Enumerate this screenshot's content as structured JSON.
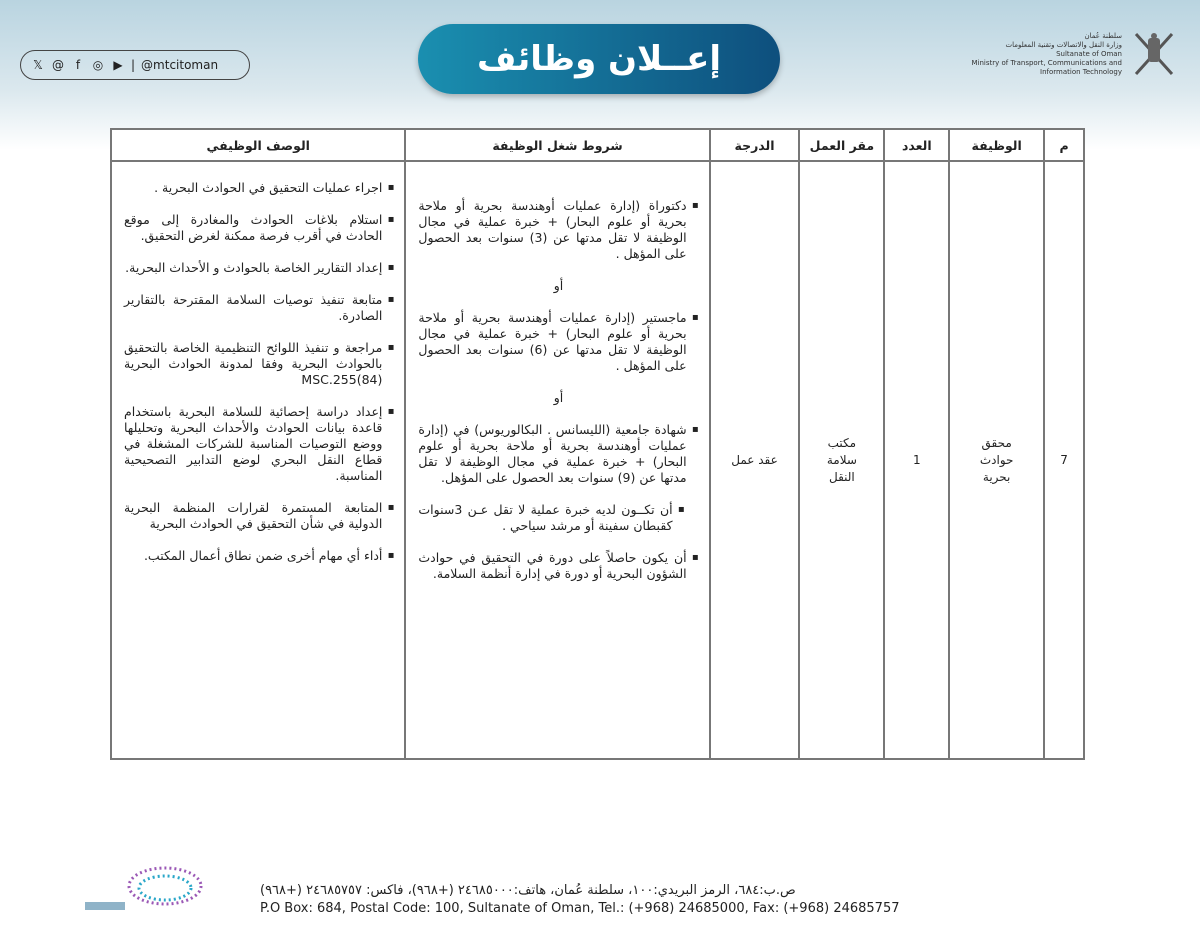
{
  "header": {
    "title": "إعــلان وظائف",
    "social_handle": "@mtcitoman",
    "social_icons": [
      "x-icon",
      "threads-icon",
      "facebook-icon",
      "instagram-icon",
      "youtube-icon"
    ],
    "ministry": [
      "سلطنة عُمان",
      "وزارة النقل والاتصالات وتقنية المعلومات",
      "Sultanate of Oman",
      "Ministry of Transport, Communications and",
      "Information Technology"
    ]
  },
  "table": {
    "headers": [
      "م",
      "الوظيفة",
      "العدد",
      "مقر العمل",
      "الدرجة",
      "شروط شغل الوظيفة",
      "الوصف الوظيفي"
    ],
    "row": {
      "no": "7",
      "job": "محقق حوادث بحرية",
      "count": "1",
      "location": "مكتب سلامة النقل",
      "grade": "عقد عمل",
      "conditions": [
        "دكتوراة (إدارة عمليات أوهندسة بحرية أو ملاحة بحرية أو علوم البحار) + خبرة عملية في مجال الوظيفة لا تقل مدتها عن (3) سنوات بعد الحصول على المؤهل .",
        "ماجستير (إدارة عمليات أوهندسة بحرية أو ملاحة بحرية أو علوم البحار) + خبرة عملية في مجال الوظيفة لا تقل مدتها عن (6) سنوات بعد الحصول على المؤهل .",
        "شهادة جامعية (الليسانس . البكالوريوس) في (إدارة عمليات أوهندسة بحرية أو ملاحة بحرية أو علوم البحار) + خبرة عملية في مجال الوظيفة لا تقل مدتها عن (9) سنوات بعد الحصول على المؤهل.",
        "أن تكــون لديه خبرة عملية لا تقل عـن 3سنوات كقبطان سفينة أو مرشد سياحي .",
        "أن يكون حاصلاً على دورة في التحقيق في حوادث الشؤون البحرية أو دورة في إدارة أنظمة السلامة."
      ],
      "or_label": "أو",
      "description": [
        "اجراء عمليات التحقيق في الحوادث البحرية .",
        "استلام بلاغات الحوادث والمغادرة إلى موقع الحادث في أقرب فرصة ممكنة لغرض التحقيق.",
        "إعداد التقارير الخاصة بالحوادث و الأحداث البحرية.",
        "متابعة تنفيذ توصيات السلامة المقترحة بالتقارير الصادرة.",
        "مراجعة و تنفيذ اللوائح التنظيمية الخاصة بالتحقيق بالحوادث البحرية وفقا لمدونة الحوادث البحرية MSC.255(84)",
        "إعداد دراسة إحصائية للسلامة البحرية باستخدام قاعدة بيانات الحوادث والأحداث البحرية وتحليلها ووضع التوصيات المناسبة للشركات المشغلة في قطاع النقل البحري لوضع التدابير التصحيحية المناسبة.",
        "المتابعة المستمرة لقرارات المنظمة البحرية الدولية في شأن التحقيق في الحوادث البحرية",
        "أداء أي مهام أخرى ضمن نطاق أعمال المكتب."
      ]
    }
  },
  "footer": {
    "arabic": "ص.ب:٦٨٤، الرمز البريدي:١٠٠، سلطنة عُمان، هاتف:٢٤٦٨٥٠٠٠ (+٩٦٨)، فاكس: ٢٤٦٨٥٧٥٧ (+٩٦٨)",
    "english": "P.O Box: 684, Postal Code: 100, Sultanate of Oman, Tel.: (+968) 24685000, Fax: (+968) 24685757"
  },
  "colors": {
    "title_start": "#1a8fb0",
    "title_end": "#0e4f7d",
    "border": "#777777"
  }
}
